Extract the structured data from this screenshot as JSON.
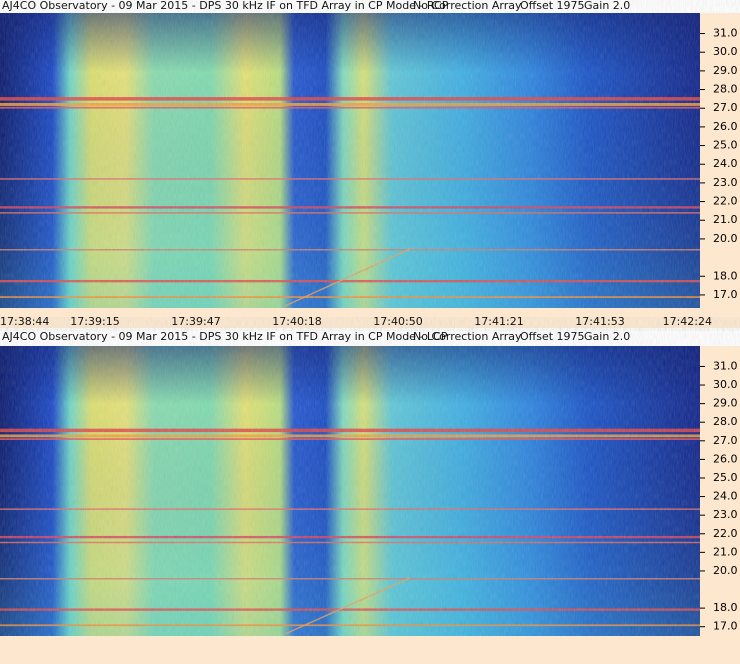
{
  "chart_data": [
    {
      "type": "spectrogram",
      "title": "AJ4CO Observatory - 09 Mar 2015 - DPS 30 kHz IF on TFD Array in CP Mode - RCP",
      "correction": "No Correction Array",
      "offset": "Offset 1975",
      "gain": "Gain 2.0",
      "ylim": [
        16.3,
        32.1
      ],
      "yticks": [
        {
          "value": 31,
          "label": "31.0"
        },
        {
          "value": 30,
          "label": "30.0"
        },
        {
          "value": 29,
          "label": "29.0"
        },
        {
          "value": 28,
          "label": "28.0"
        },
        {
          "value": 27,
          "label": "27.0"
        },
        {
          "value": 26,
          "label": "26.0"
        },
        {
          "value": 25,
          "label": "25.0"
        },
        {
          "value": 24,
          "label": "24.0"
        },
        {
          "value": 23,
          "label": "23.0"
        },
        {
          "value": 22,
          "label": "22.0"
        },
        {
          "value": 21,
          "label": "21.0"
        },
        {
          "value": 20,
          "label": "20.0"
        },
        {
          "value": 18,
          "label": "18.0"
        },
        {
          "value": 17,
          "label": "17.0"
        }
      ],
      "xticks": [
        "17:38:44",
        "17:39:15",
        "17:39:47",
        "17:40:18",
        "17:40:50",
        "17:41:21",
        "17:41:53",
        "17:42:24"
      ]
    },
    {
      "type": "spectrogram",
      "title": "AJ4CO Observatory - 09 Mar 2015 - DPS 30 kHz IF on TFD Array in CP Mode - LCP",
      "correction": "No Correction Array",
      "offset": "Offset 1975",
      "gain": "Gain 2.0",
      "ylim": [
        16.5,
        32.1
      ],
      "yticks": [
        {
          "value": 31,
          "label": "31.0"
        },
        {
          "value": 30,
          "label": "30.0"
        },
        {
          "value": 29,
          "label": "29.0"
        },
        {
          "value": 28,
          "label": "28.0"
        },
        {
          "value": 27,
          "label": "27.0"
        },
        {
          "value": 26,
          "label": "26.0"
        },
        {
          "value": 25,
          "label": "25.0"
        },
        {
          "value": 24,
          "label": "24.0"
        },
        {
          "value": 23,
          "label": "23.0"
        },
        {
          "value": 22,
          "label": "22.0"
        },
        {
          "value": 21,
          "label": "21.0"
        },
        {
          "value": 20,
          "label": "20.0"
        },
        {
          "value": 18,
          "label": "18.0"
        },
        {
          "value": 17,
          "label": "17.0"
        }
      ]
    }
  ]
}
